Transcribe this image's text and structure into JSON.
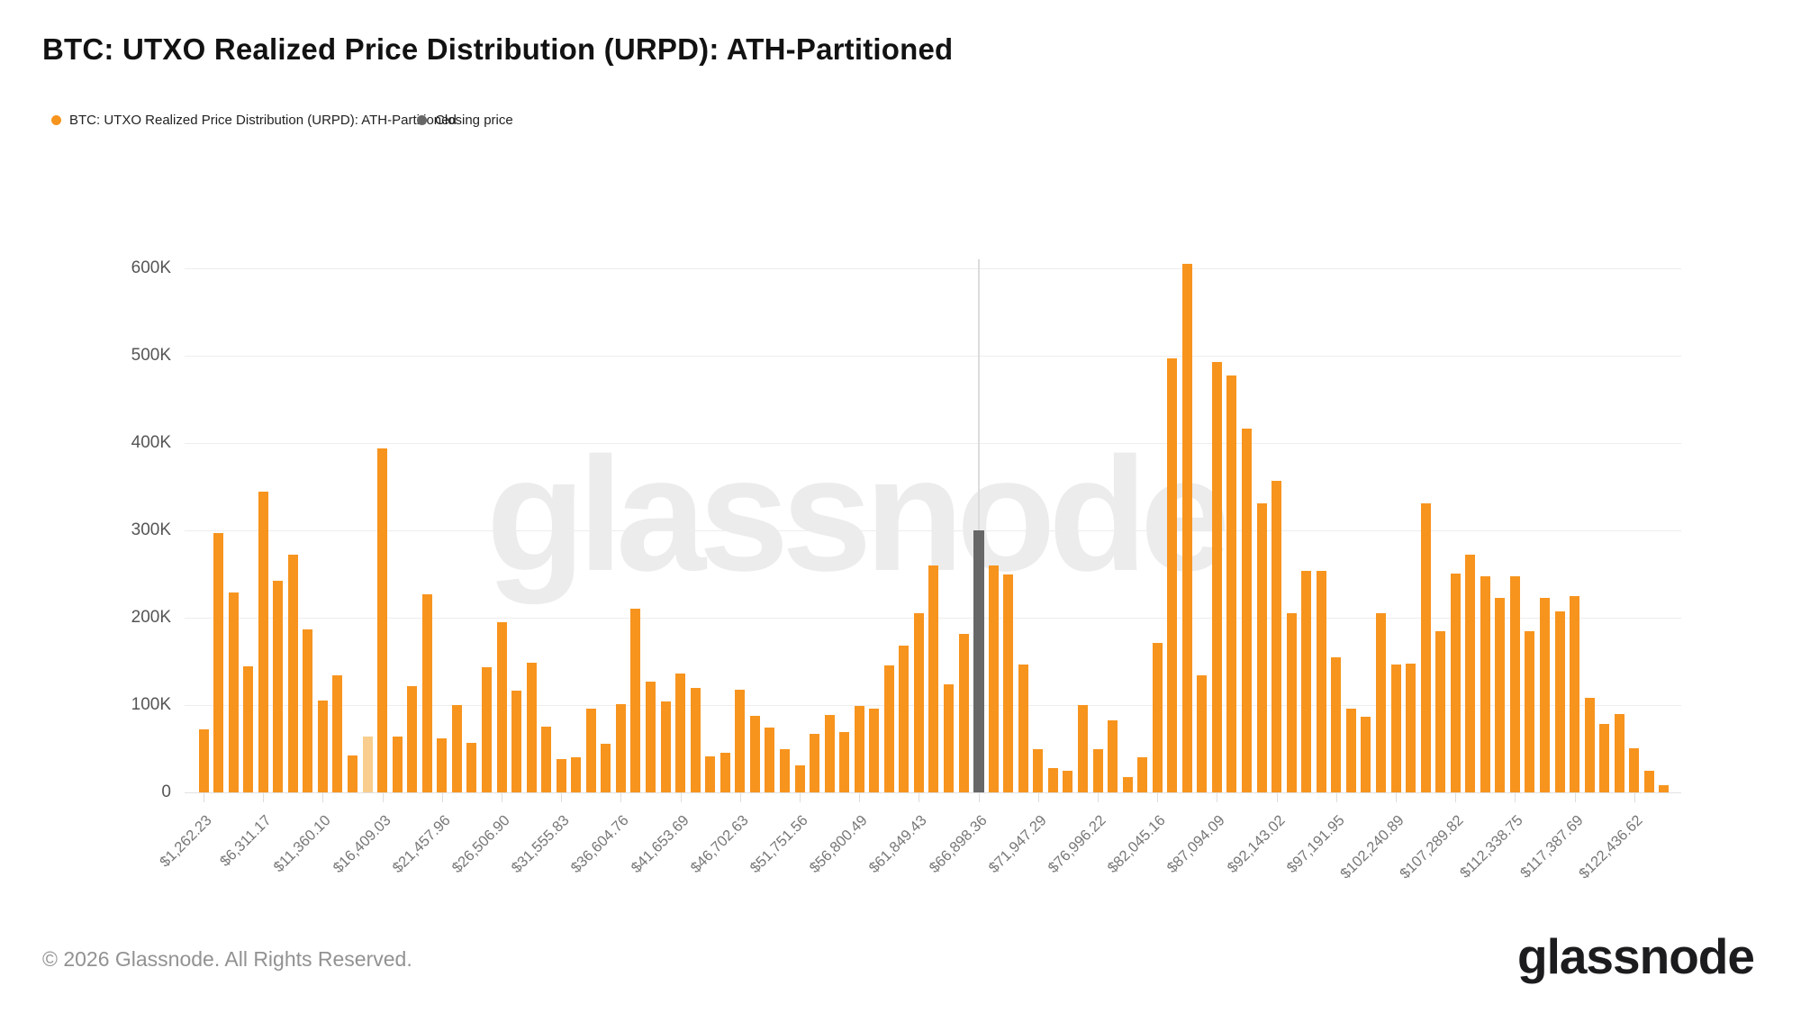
{
  "header": {
    "title": "BTC: UTXO Realized Price Distribution (URPD): ATH-Partitioned"
  },
  "legend": [
    {
      "label": "BTC: UTXO Realized Price Distribution (URPD): ATH-Partitioned",
      "color": "#F7941E"
    },
    {
      "label": "Closing price",
      "color": "#676767"
    }
  ],
  "watermark": "glassnode",
  "footer": {
    "copyright": "© 2026 Glassnode. All Rights Reserved.",
    "logo": "glassnode"
  },
  "chart_data": {
    "type": "bar",
    "title": "BTC: UTXO Realized Price Distribution (URPD): ATH-Partitioned",
    "xlabel": "",
    "ylabel": "",
    "grid": true,
    "legend_position": "top-left",
    "ylim": [
      0,
      620000
    ],
    "y_ticks": [
      "0",
      "100K",
      "200K",
      "300K",
      "400K",
      "500K",
      "600K"
    ],
    "y_tick_values": [
      0,
      100000,
      200000,
      300000,
      400000,
      500000,
      600000
    ],
    "bin_width_usd": 1262.23,
    "x_ticks_every_n_bars": 4,
    "x_tick_labels": [
      "$1,262.23",
      "$6,311.17",
      "$11,360.10",
      "$16,409.03",
      "$21,457.96",
      "$26,506.90",
      "$31,555.83",
      "$36,604.76",
      "$41,653.69",
      "$46,702.63",
      "$51,751.56",
      "$56,800.49",
      "$61,849.43",
      "$66,898.36",
      "$71,947.29",
      "$76,996.22",
      "$82,045.16",
      "$87,094.09",
      "$92,143.02",
      "$97,191.95",
      "$102,240.89",
      "$107,289.82",
      "$112,338.75",
      "$117,387.69",
      "$122,436.62"
    ],
    "values_btc": [
      72000,
      297000,
      229000,
      144000,
      344000,
      242000,
      272000,
      187000,
      105000,
      134000,
      42000,
      64000,
      394000,
      64000,
      122000,
      227000,
      62000,
      100000,
      57000,
      143000,
      195000,
      117000,
      148000,
      75000,
      38000,
      40000,
      96000,
      56000,
      101000,
      210000,
      127000,
      104000,
      136000,
      120000,
      41000,
      45000,
      118000,
      88000,
      74000,
      50000,
      31000,
      67000,
      89000,
      69000,
      99000,
      96000,
      145000,
      168000,
      205000,
      260000,
      124000,
      181000,
      null,
      260000,
      250000,
      146000,
      50000,
      28000,
      25000,
      100000,
      49000,
      82000,
      18000,
      40000,
      171000,
      497000,
      605000,
      134000,
      493000,
      477000,
      416000,
      331000,
      357000,
      205000,
      254000,
      254000,
      155000,
      96000,
      87000,
      205000,
      146000,
      147000,
      331000,
      185000,
      251000,
      272000,
      247000,
      223000,
      247000,
      185000,
      223000,
      207000,
      225000,
      108000,
      78000,
      90000,
      51000,
      25000,
      8000
    ],
    "closing_price": {
      "bar_index": 52,
      "x_label": "$66,898.36",
      "height_btc": 300000
    },
    "highlighted_pale_bar_index": 11,
    "colors": {
      "bar": "#F7941E",
      "pale_bar": "#F8CD8D",
      "closing": "#676767",
      "grid": "#EDEDED",
      "marker_line": "#DCDCDC"
    }
  }
}
